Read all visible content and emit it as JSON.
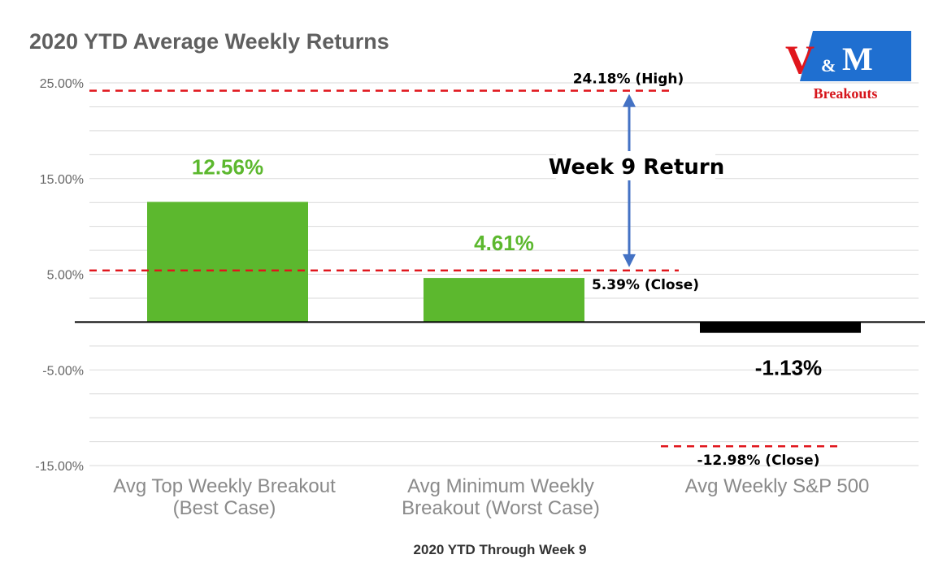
{
  "chart_data": {
    "type": "bar",
    "title": "2020 YTD Average Weekly Returns",
    "xlabel": "2020 YTD Through Week 9",
    "ylabel": "",
    "ylim": [
      -15,
      25
    ],
    "y_ticks": [
      25,
      15,
      5,
      -5,
      -15
    ],
    "y_tick_labels": [
      "25.00%",
      "15.00%",
      "5.00%",
      "-5.00%",
      "-15.00%"
    ],
    "grid": true,
    "categories": [
      [
        "Avg Top Weekly Breakout",
        "(Best Case)"
      ],
      [
        "Avg Minimum Weekly",
        "Breakout (Worst Case)"
      ],
      [
        "Avg Weekly S&P 500"
      ]
    ],
    "values": [
      12.56,
      4.61,
      -1.13
    ],
    "value_labels": [
      "12.56%",
      "4.61%",
      "-1.13%"
    ],
    "bar_colors": [
      "#5cb82e",
      "#5cb82e",
      "#000000"
    ],
    "label_colors": [
      "#5cb82e",
      "#5cb82e",
      "#000000"
    ],
    "reference_lines": [
      {
        "value": 24.18,
        "label": "24.18% (High)",
        "x_from": 0,
        "x_to": 2
      },
      {
        "value": 5.39,
        "label": "5.39% (Close)",
        "x_from": 0,
        "x_to": 2
      },
      {
        "value": -12.98,
        "label": "-12.98% (Close)",
        "x_from": 2,
        "x_to": 2
      }
    ],
    "range_annotation": {
      "from": 24.18,
      "to": 5.39,
      "label": "Week 9 Return"
    }
  },
  "logo": {
    "v": "V",
    "amp": "&",
    "m": "M",
    "sub": "Breakouts"
  },
  "colors": {
    "bar_green": "#5cb82e",
    "sp500_bar": "#000000",
    "reference_line": "#e0161c",
    "arrow": "#4472c4",
    "grid": "#d9d9d9",
    "logo_blue": "#1f6fd0"
  }
}
